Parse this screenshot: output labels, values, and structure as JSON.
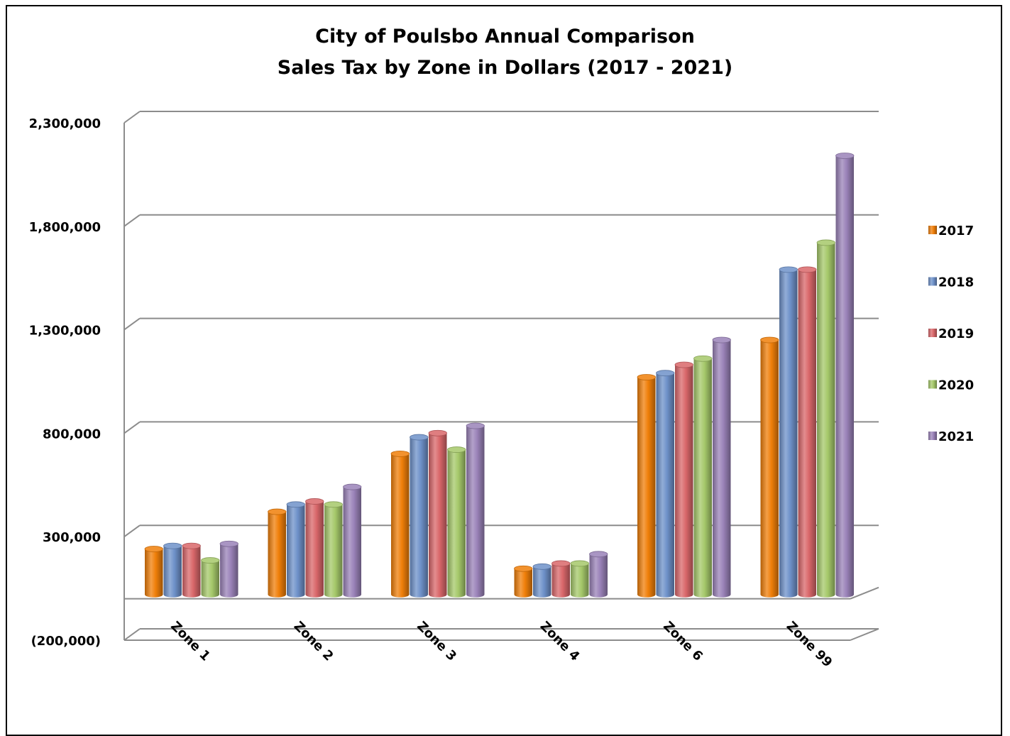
{
  "chart_data": {
    "type": "bar",
    "title": [
      "City of Poulsbo Annual Comparison",
      "Sales Tax by Zone in Dollars (2017 - 2021)"
    ],
    "categories": [
      "Zone 1",
      "Zone 2",
      "Zone 3",
      "Zone 4",
      "Zone 6",
      "Zone 99"
    ],
    "series": [
      {
        "name": "2017",
        "color": "#F07F09",
        "values": [
          220000,
          400000,
          680000,
          125000,
          1050000,
          1230000
        ]
      },
      {
        "name": "2018",
        "color": "#6E91C9",
        "values": [
          235000,
          435000,
          760000,
          135000,
          1070000,
          1570000
        ]
      },
      {
        "name": "2019",
        "color": "#D9676A",
        "values": [
          235000,
          450000,
          780000,
          150000,
          1110000,
          1570000
        ]
      },
      {
        "name": "2020",
        "color": "#A5C86A",
        "values": [
          165000,
          435000,
          700000,
          150000,
          1140000,
          1700000
        ]
      },
      {
        "name": "2021",
        "color": "#9A82B8",
        "values": [
          245000,
          520000,
          815000,
          195000,
          1230000,
          2120000
        ]
      }
    ],
    "y_ticks": [
      2300000,
      1800000,
      1300000,
      800000,
      300000,
      -200000
    ],
    "y_tick_labels": [
      "2,300,000",
      "1,800,000",
      "1,300,000",
      "800,000",
      "300,000",
      "(200,000)"
    ],
    "ylim": [
      -200000,
      2300000
    ],
    "grid": true,
    "legend_position": "right"
  }
}
